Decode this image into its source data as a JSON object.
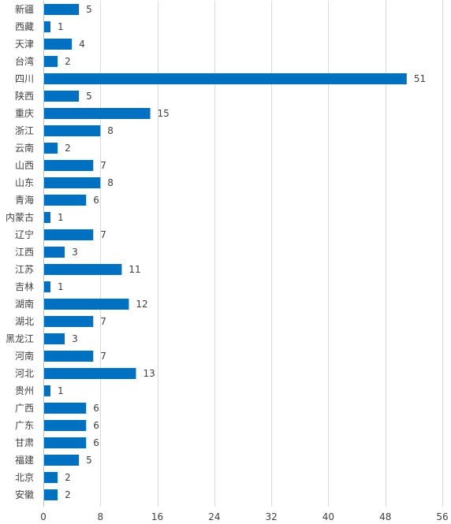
{
  "chart_data": {
    "type": "bar",
    "orientation": "horizontal",
    "categories": [
      "新疆",
      "西藏",
      "天津",
      "台湾",
      "四川",
      "陕西",
      "重庆",
      "浙江",
      "云南",
      "山西",
      "山东",
      "青海",
      "内蒙古",
      "辽宁",
      "江西",
      "江苏",
      "吉林",
      "湖南",
      "湖北",
      "黑龙江",
      "河南",
      "河北",
      "贵州",
      "广西",
      "广东",
      "甘肃",
      "福建",
      "北京",
      "安徽"
    ],
    "values": [
      5,
      1,
      4,
      2,
      51,
      5,
      15,
      8,
      2,
      7,
      8,
      6,
      1,
      7,
      3,
      11,
      1,
      12,
      7,
      3,
      7,
      13,
      1,
      6,
      6,
      6,
      5,
      2,
      2
    ],
    "xlim": [
      0,
      56
    ],
    "x_ticks": [
      0,
      8,
      16,
      24,
      32,
      40,
      48,
      56
    ],
    "title": "",
    "xlabel": "",
    "ylabel": "",
    "grid": true,
    "legend": "none",
    "data_labels": true,
    "colors": {
      "bar": "#0070C0",
      "text": "#404040",
      "grid": "#D9D9D9"
    }
  }
}
